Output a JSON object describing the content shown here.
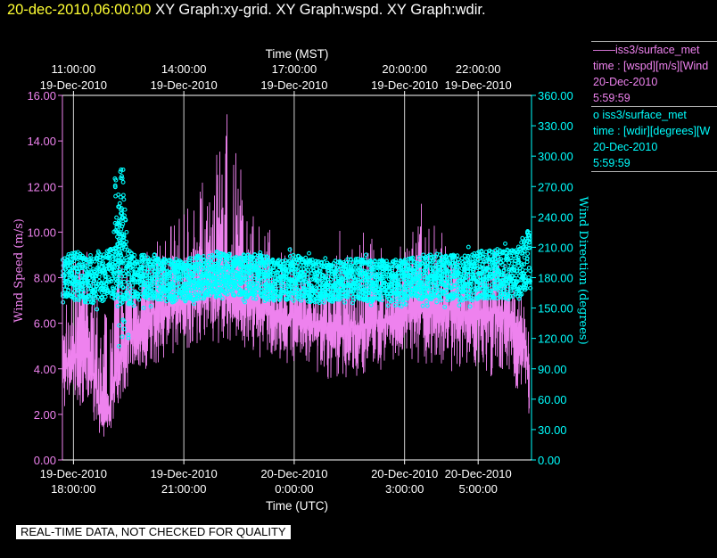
{
  "header": {
    "timestamp": "20-dec-2010,06:00:00",
    "graphs": "XY Graph:xy-grid.  XY Graph:wspd.  XY Graph:wdir."
  },
  "legend": {
    "entries": [
      {
        "symbol": "——",
        "source": "iss3/surface_met",
        "var": "time : [wspd][m/s][Wind",
        "date": "20-Dec-2010",
        "time": "5:59:59",
        "color": "#ee82ee"
      },
      {
        "symbol": "o",
        "source": "iss3/surface_met",
        "var": "time : [wdir][degrees][W",
        "date": "20-Dec-2010",
        "time": "5:59:59",
        "color": "#00ffff"
      }
    ]
  },
  "footer": {
    "quality_note": "REAL-TIME DATA, NOT CHECKED FOR QUALITY"
  },
  "chart_data": {
    "type": "line",
    "xlabel_bottom": "Time (UTC)",
    "xlabel_top": "Time (MST)",
    "ylabel_left": "Wind Speed (m/s)",
    "ylabel_right": "Wind Direction (degrees)",
    "x_range_hours_utc": [
      17.7,
      30.45
    ],
    "ylim_left": [
      0,
      16
    ],
    "ylim_right": [
      0,
      360
    ],
    "grid": "vertical",
    "left_ticks": [
      "0.00",
      "2.00",
      "4.00",
      "6.00",
      "8.00",
      "10.00",
      "12.00",
      "14.00",
      "16.00"
    ],
    "right_ticks": [
      "0.00",
      "30.00",
      "60.00",
      "90.00",
      "120.00",
      "150.00",
      "180.00",
      "210.00",
      "240.00",
      "270.00",
      "300.00",
      "330.00",
      "360.00"
    ],
    "bottom_ticks": [
      {
        "t": 18,
        "line1": "19-Dec-2010",
        "line2": "18:00:00"
      },
      {
        "t": 21,
        "line1": "19-Dec-2010",
        "line2": "21:00:00"
      },
      {
        "t": 24,
        "line1": "20-Dec-2010",
        "line2": "0:00:00"
      },
      {
        "t": 27,
        "line1": "20-Dec-2010",
        "line2": "3:00:00"
      },
      {
        "t": 29,
        "line1": "20-Dec-2010",
        "line2": "5:00:00"
      }
    ],
    "top_ticks": [
      {
        "t": 18,
        "line1": "11:00:00",
        "line2": "19-Dec-2010"
      },
      {
        "t": 21,
        "line1": "14:00:00",
        "line2": "19-Dec-2010"
      },
      {
        "t": 24,
        "line1": "17:00:00",
        "line2": "19-Dec-2010"
      },
      {
        "t": 27,
        "line1": "20:00:00",
        "line2": "19-Dec-2010"
      },
      {
        "t": 29,
        "line1": "22:00:00",
        "line2": "19-Dec-2010"
      }
    ],
    "series": [
      {
        "name": "iss3/surface_met wspd",
        "color": "#ee82ee",
        "style": "line",
        "t": [
          17.7,
          18.0,
          18.3,
          18.6,
          18.8,
          19.0,
          19.2,
          19.5,
          19.8,
          20.2,
          20.6,
          21.0,
          21.4,
          21.8,
          22.2,
          22.6,
          23.0,
          23.5,
          24.0,
          24.5,
          25.0,
          25.5,
          26.0,
          26.5,
          27.0,
          27.5,
          28.0,
          28.5,
          29.0,
          29.5,
          29.8,
          30.0,
          30.2,
          30.4
        ],
        "low": [
          2.0,
          2.0,
          2.2,
          1.5,
          0.8,
          1.2,
          2.0,
          3.0,
          3.5,
          4.0,
          4.5,
          4.8,
          5.0,
          5.2,
          5.0,
          4.8,
          4.5,
          4.2,
          4.0,
          3.8,
          3.5,
          3.5,
          3.5,
          3.8,
          4.0,
          4.2,
          4.0,
          3.8,
          3.5,
          3.2,
          3.0,
          2.8,
          2.5,
          1.5
        ],
        "mid": [
          4.0,
          4.5,
          5.0,
          3.5,
          1.5,
          2.5,
          4.5,
          5.5,
          6.0,
          6.5,
          6.8,
          7.0,
          7.5,
          7.5,
          7.2,
          7.0,
          6.8,
          6.5,
          6.2,
          6.0,
          5.8,
          5.8,
          6.0,
          6.2,
          6.5,
          6.8,
          6.8,
          6.5,
          6.5,
          6.5,
          6.5,
          6.0,
          5.5,
          4.0
        ],
        "high": [
          6.5,
          9.0,
          9.5,
          8.5,
          6.0,
          9.5,
          9.0,
          8.5,
          9.0,
          9.5,
          10.5,
          11.0,
          12.5,
          13.0,
          15.5,
          12.5,
          11.0,
          9.5,
          9.0,
          8.5,
          9.0,
          9.5,
          10.5,
          9.0,
          9.5,
          11.5,
          10.0,
          9.0,
          9.0,
          9.5,
          9.0,
          8.0,
          7.5,
          6.0
        ]
      },
      {
        "name": "iss3/surface_met wdir",
        "color": "#00ffff",
        "style": "markers",
        "t": [
          17.7,
          18.0,
          18.5,
          19.0,
          19.3,
          19.5,
          19.7,
          20.0,
          20.5,
          21.0,
          21.5,
          22.0,
          22.5,
          23.0,
          23.5,
          24.0,
          24.5,
          25.0,
          25.5,
          26.0,
          26.5,
          27.0,
          27.5,
          28.0,
          28.5,
          29.0,
          29.5,
          30.0,
          30.2,
          30.4
        ],
        "low": [
          155,
          150,
          148,
          150,
          140,
          145,
          150,
          150,
          148,
          150,
          152,
          155,
          155,
          152,
          150,
          150,
          148,
          150,
          155,
          150,
          150,
          150,
          152,
          150,
          150,
          150,
          152,
          150,
          155,
          160
        ],
        "high": [
          205,
          215,
          205,
          220,
          285,
          215,
          210,
          210,
          205,
          205,
          210,
          210,
          210,
          210,
          205,
          210,
          205,
          200,
          205,
          205,
          205,
          205,
          210,
          210,
          210,
          215,
          215,
          215,
          230,
          240
        ]
      }
    ]
  }
}
